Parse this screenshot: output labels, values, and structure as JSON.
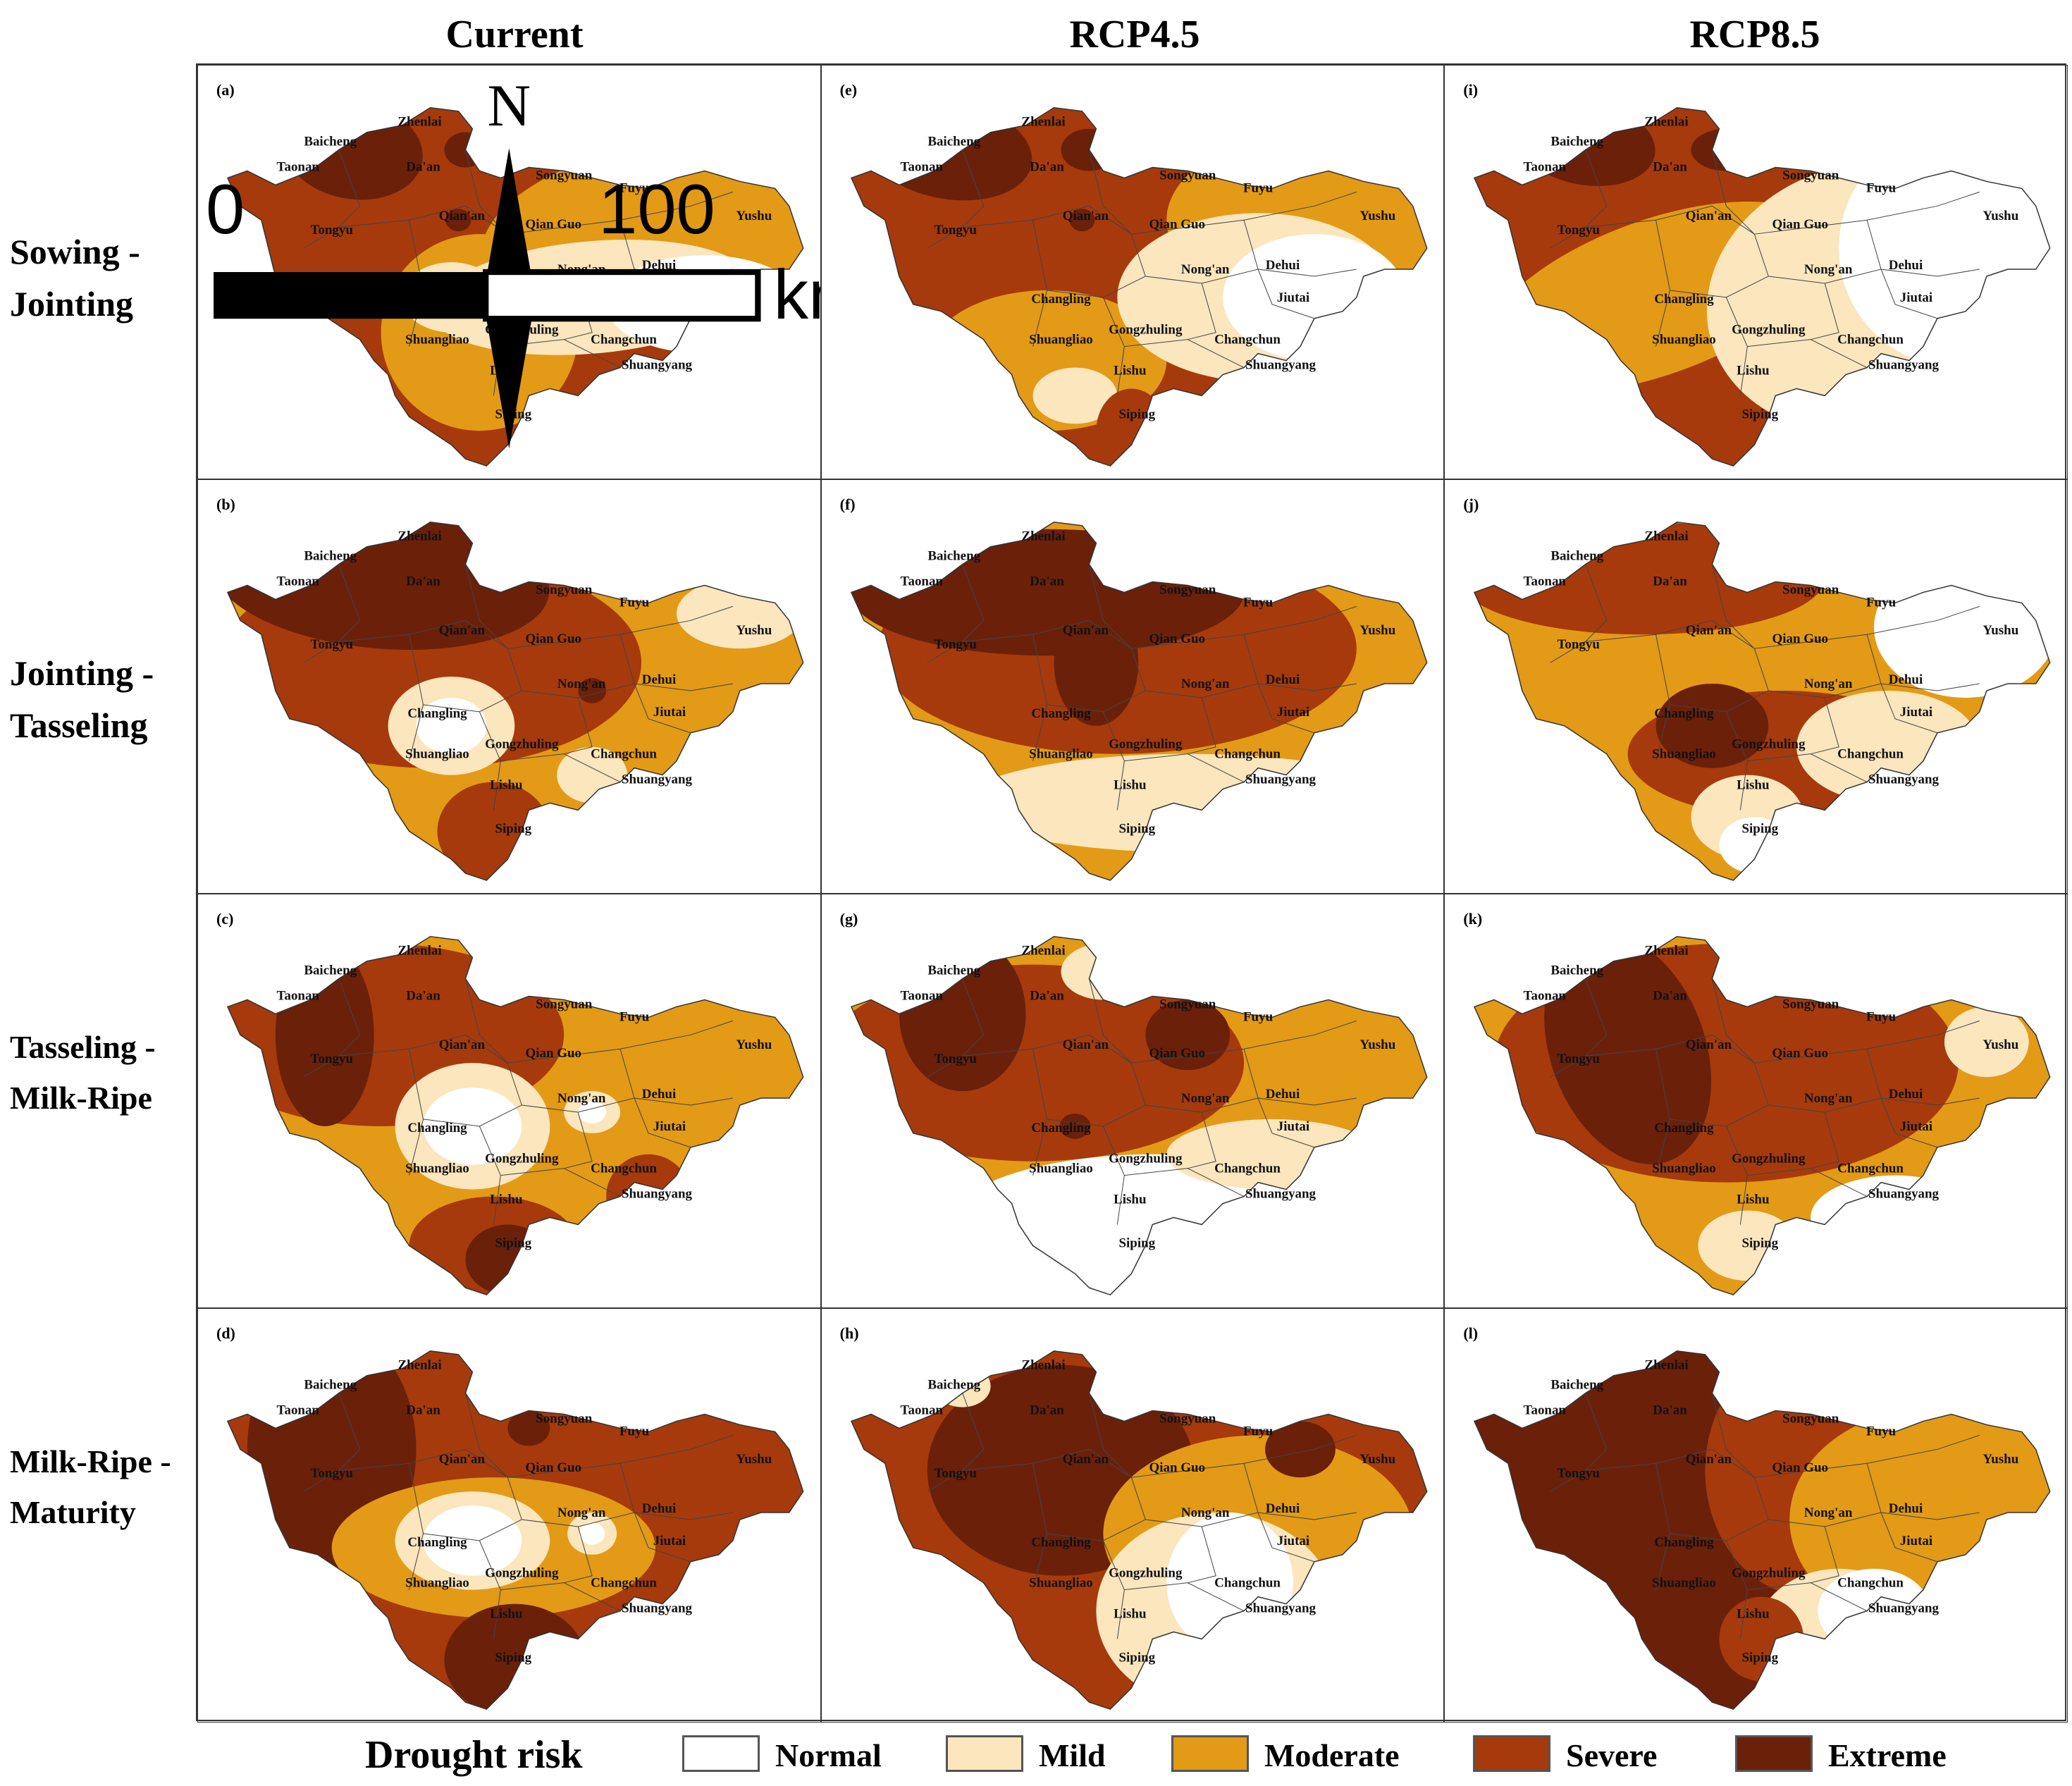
{
  "columns": [
    "Current",
    "RCP4.5",
    "RCP8.5"
  ],
  "rows": [
    {
      "line1": "Sowing -",
      "line2": "Jointing"
    },
    {
      "line1": "Jointing -",
      "line2": "Tasseling"
    },
    {
      "line1": "Tasseling -",
      "line2": "Milk-Ripe"
    },
    {
      "line1": "Milk-Ripe -",
      "line2": "Maturity"
    }
  ],
  "panel_labels": [
    [
      "(a)",
      "(e)",
      "(i)"
    ],
    [
      "(b)",
      "(f)",
      "(j)"
    ],
    [
      "(c)",
      "(g)",
      "(k)"
    ],
    [
      "(d)",
      "(h)",
      "(l)"
    ]
  ],
  "cities": [
    "Zhenlai",
    "Baicheng",
    "Taonan",
    "Da'an",
    "Songyuan",
    "Fuyu",
    "Yushu",
    "Tongyu",
    "Qian'an",
    "Qian Guo",
    "Nong'an",
    "Dehui",
    "Jiutai",
    "Changling",
    "Gongzhuling",
    "Changchun",
    "Shuangliao",
    "Shuangyang",
    "Lishu",
    "Siping"
  ],
  "scale": {
    "zero": "0",
    "hundred": "100",
    "unit": "km"
  },
  "north_label": "N",
  "legend": {
    "title": "Drought risk",
    "items": [
      {
        "label": "Normal",
        "color": "#ffffff"
      },
      {
        "label": "Mild",
        "color": "#fbe6bd"
      },
      {
        "label": "Moderate",
        "color": "#e39a16"
      },
      {
        "label": "Severe",
        "color": "#a63a0c"
      },
      {
        "label": "Extreme",
        "color": "#6b200a"
      }
    ]
  },
  "risk_fields": [
    [
      "severe_w_moderate_e_normal_se",
      "extreme_nw_severe_center_moderate_e",
      "severe_nw_moderate_center_normal_e"
    ],
    [
      "extreme_n_severe_moderate_s",
      "extreme_n_severe_center_mild_s",
      "severe_n_moderate_center_normal_ne"
    ],
    [
      "extreme_w_severe_moderate_e",
      "extreme_w_severe_center_normal_s",
      "extreme_w_severe_center_moderate_e"
    ],
    [
      "extreme_w_severe_center_moderate",
      "severe_extreme_center_mild_s",
      "extreme_w_moderate_e_mild_s"
    ]
  ]
}
